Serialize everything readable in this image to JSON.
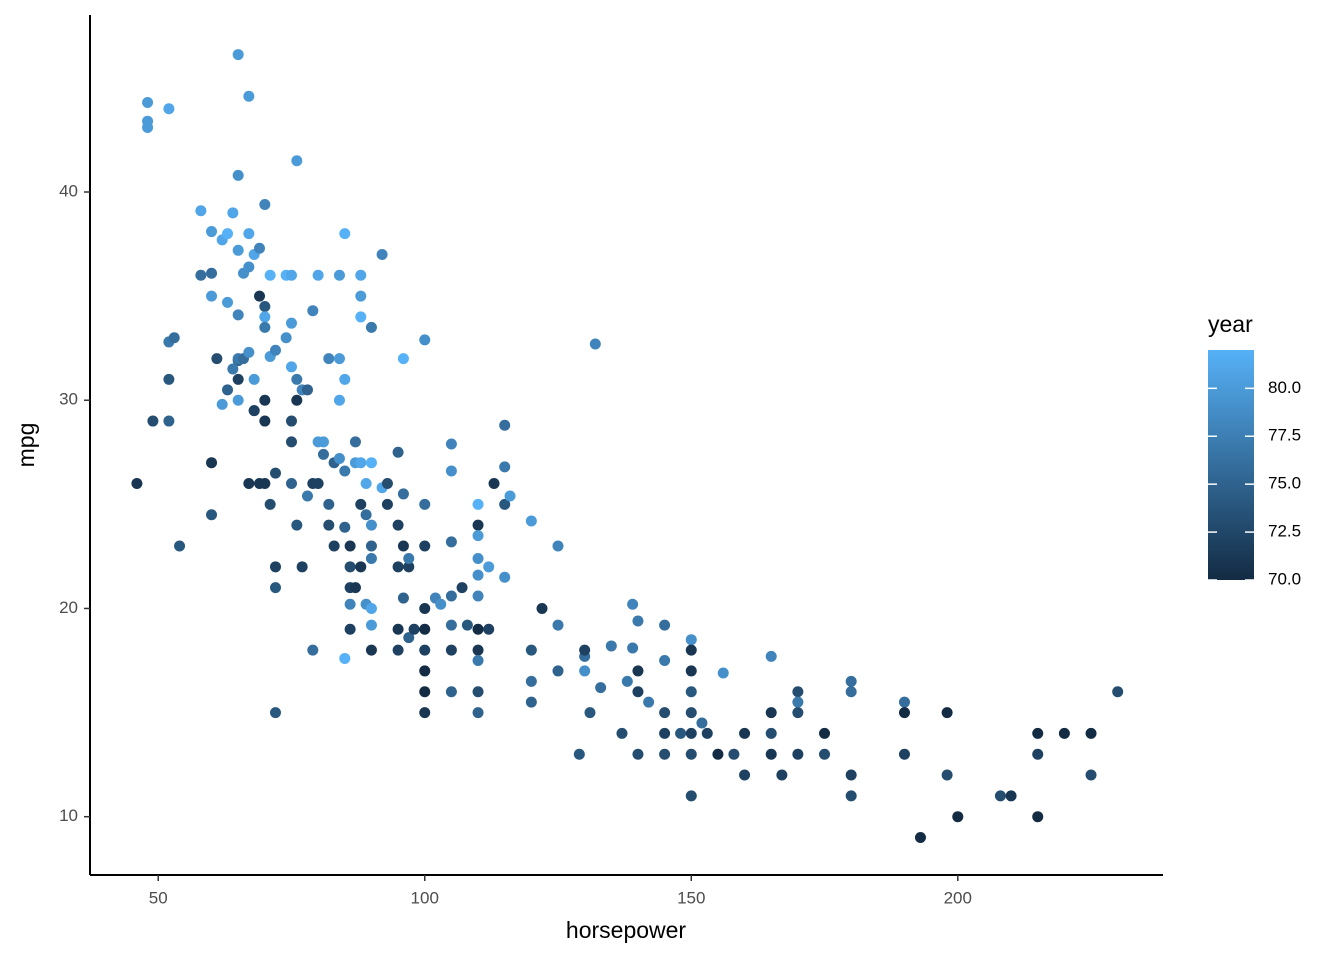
{
  "chart_data": {
    "type": "scatter",
    "x_label": "horsepower",
    "y_label": "mpg",
    "legend_title": "year",
    "xlim": [
      37.2,
      238.5
    ],
    "ylim": [
      7.2,
      48.5
    ],
    "xticks": [
      50,
      100,
      150,
      200
    ],
    "yticks": [
      10,
      20,
      30,
      40
    ],
    "color_low": "#132B43",
    "color_high": "#56B1F7",
    "colorlim": [
      70,
      82
    ],
    "colorticks": [
      {
        "value": 70,
        "label": "70.0"
      },
      72.5,
      {
        "value": 75,
        "label": "75.0"
      },
      77.5,
      {
        "value": 80,
        "label": "80.0"
      }
    ],
    "x": [
      46,
      48,
      48,
      48,
      52,
      65,
      67,
      49,
      52,
      53,
      52,
      52,
      54,
      58,
      60,
      62,
      63,
      64,
      65,
      76,
      70,
      58,
      60,
      61,
      60,
      60,
      62,
      60,
      63,
      65,
      66,
      67,
      68,
      69,
      65,
      67,
      71,
      74,
      75,
      65,
      65,
      65,
      66,
      67,
      68,
      68,
      70,
      69,
      70,
      70,
      70,
      71,
      72,
      74,
      75,
      75,
      76,
      76,
      77,
      78,
      80,
      79,
      80,
      81,
      82,
      84,
      84,
      85,
      84,
      85,
      88,
      88,
      88,
      90,
      92,
      96,
      100,
      132,
      63,
      64,
      65,
      67,
      68,
      70,
      69,
      70,
      72,
      71,
      72,
      72,
      72,
      75,
      75,
      75,
      76,
      77,
      78,
      79,
      80,
      81,
      82,
      82,
      83,
      79,
      83,
      84,
      85,
      85,
      86,
      86,
      86,
      86,
      86,
      85,
      87,
      87,
      88,
      89,
      90,
      88,
      89,
      90,
      90,
      90,
      88,
      87,
      89,
      90,
      90,
      90,
      92,
      93,
      93,
      95,
      96,
      95,
      96,
      95,
      97,
      96,
      95,
      95,
      97,
      98,
      97,
      100,
      100,
      100,
      100,
      100,
      100,
      100,
      100,
      102,
      103,
      105,
      105,
      105,
      105,
      105,
      105,
      105,
      107,
      108,
      110,
      110,
      110,
      110,
      110,
      110,
      110,
      110,
      110,
      110,
      110,
      112,
      112,
      113,
      115,
      115,
      115,
      116,
      115,
      120,
      120,
      120,
      120,
      122,
      125,
      125,
      125,
      129,
      130,
      130,
      130,
      131,
      133,
      135,
      137,
      138,
      139,
      140,
      139,
      140,
      140,
      140,
      142,
      145,
      145,
      145,
      145,
      145,
      148,
      150,
      150,
      150,
      150,
      150,
      150,
      150,
      150,
      152,
      153,
      155,
      156,
      158,
      160,
      160,
      165,
      165,
      165,
      165,
      167,
      170,
      170,
      170,
      170,
      175,
      175,
      180,
      180,
      180,
      180,
      190,
      190,
      190,
      193,
      198,
      198,
      200,
      208,
      210,
      215,
      215,
      215,
      220,
      225,
      225,
      230
    ],
    "values": [
      26,
      44.3,
      43.4,
      43.1,
      44,
      46.6,
      44.6,
      29,
      32.8,
      33,
      31,
      29,
      23,
      39.1,
      38.1,
      37.7,
      38,
      39,
      40.8,
      41.5,
      39.4,
      36,
      36.1,
      32,
      27,
      24.5,
      29.8,
      35,
      34.7,
      34.1,
      36.1,
      38,
      37,
      37.3,
      37.2,
      36.4,
      36,
      36,
      36,
      31,
      31.9,
      32,
      32,
      32.3,
      31,
      29.5,
      30,
      35,
      34.5,
      34,
      33.5,
      32.1,
      32.4,
      33,
      33.7,
      31.6,
      31,
      30,
      30.5,
      30.5,
      36,
      34.3,
      28,
      28,
      32,
      36,
      32,
      31,
      30,
      38,
      36,
      35,
      34,
      33.5,
      37,
      32,
      32.9,
      32.7,
      30.5,
      31.5,
      30,
      26,
      29.5,
      29,
      26,
      26,
      26.5,
      25,
      22,
      21,
      15,
      29,
      28,
      26,
      24,
      22,
      25.4,
      26,
      26,
      27.4,
      25,
      24,
      23,
      18,
      27,
      27.2,
      26.6,
      23.9,
      23,
      22,
      21,
      20.2,
      19,
      17.6,
      28,
      27,
      27,
      26,
      27,
      25,
      24.5,
      24,
      23,
      22.4,
      22,
      21,
      20.2,
      20,
      19.2,
      18,
      25.8,
      26,
      25,
      27.5,
      25.5,
      24,
      23,
      22,
      22,
      20.5,
      19,
      18,
      18.6,
      19,
      22.4,
      25,
      23,
      20,
      19,
      18,
      17,
      16,
      15,
      20.5,
      20.2,
      27.9,
      26.6,
      23.2,
      20.6,
      19.2,
      18,
      16,
      21,
      19.2,
      25,
      24,
      23.5,
      22.4,
      21.6,
      20.6,
      19,
      18,
      17.5,
      16,
      15,
      22,
      19,
      26,
      28.8,
      26.8,
      25,
      25.4,
      21.5,
      24.2,
      18,
      16.5,
      15.5,
      20,
      23,
      19.2,
      17,
      13,
      17.7,
      17,
      18,
      15,
      16.2,
      18.2,
      14,
      16.5,
      20.2,
      19.4,
      18.1,
      17,
      16,
      13,
      15.5,
      19.2,
      17.5,
      15,
      14,
      13,
      14,
      18.5,
      18,
      17,
      16,
      15,
      14,
      13,
      11,
      14.5,
      14,
      13,
      16.9,
      13,
      14,
      12,
      17.7,
      15,
      14,
      13,
      12,
      16,
      15.5,
      15,
      13,
      14,
      13,
      16.5,
      16,
      12,
      11,
      15.5,
      15,
      13,
      9,
      15,
      12,
      10,
      11,
      11,
      14,
      13,
      10,
      14,
      14,
      12,
      16
    ],
    "years": [
      71,
      80,
      80,
      80,
      81,
      80,
      80,
      73,
      77,
      76,
      74,
      75,
      74,
      81,
      80,
      81,
      82,
      81,
      79,
      80,
      78,
      76,
      76,
      73,
      71,
      74,
      80,
      80,
      80,
      78,
      79,
      81,
      81,
      78,
      80,
      79,
      82,
      82,
      81,
      72,
      75,
      77,
      76,
      79,
      80,
      73,
      71,
      71,
      74,
      81,
      77,
      80,
      78,
      79,
      80,
      81,
      77,
      71,
      78,
      75,
      81,
      78,
      80,
      80,
      78,
      80,
      80,
      81,
      81,
      82,
      81,
      80,
      82,
      77,
      78,
      82,
      79,
      78,
      75,
      77,
      80,
      71,
      72,
      71,
      71,
      71,
      73,
      73,
      72,
      74,
      74,
      73,
      73,
      75,
      74,
      72,
      77,
      72,
      72,
      76,
      75,
      73,
      72,
      76,
      75,
      79,
      77,
      75,
      71,
      73,
      72,
      78,
      72,
      82,
      76,
      80,
      81,
      81,
      82,
      72,
      76,
      79,
      75,
      77,
      71,
      71,
      79,
      81,
      80,
      71,
      81,
      73,
      72,
      75,
      76,
      72,
      71,
      72,
      72,
      75,
      71,
      72,
      75,
      72,
      77,
      76,
      72,
      71,
      70,
      72,
      70,
      70,
      71,
      78,
      79,
      78,
      79,
      76,
      76,
      76,
      72,
      75,
      72,
      74,
      82,
      71,
      80,
      79,
      79,
      78,
      70,
      71,
      77,
      73,
      75,
      80,
      72,
      71,
      76,
      77,
      74,
      80,
      79,
      80,
      74,
      76,
      75,
      71,
      78,
      77,
      75,
      74,
      76,
      79,
      72,
      74,
      76,
      77,
      73,
      77,
      78,
      77,
      77,
      71,
      72,
      73,
      77,
      76,
      77,
      73,
      72,
      73,
      74,
      79,
      71,
      71,
      74,
      73,
      72,
      73,
      73,
      76,
      72,
      70,
      79,
      73,
      71,
      72,
      78,
      71,
      73,
      71,
      72,
      73,
      77,
      73,
      72,
      70,
      73,
      76,
      76,
      72,
      73,
      76,
      70,
      72,
      70,
      70,
      73,
      70,
      73,
      71,
      70,
      72,
      70,
      70,
      70,
      73,
      73
    ]
  }
}
